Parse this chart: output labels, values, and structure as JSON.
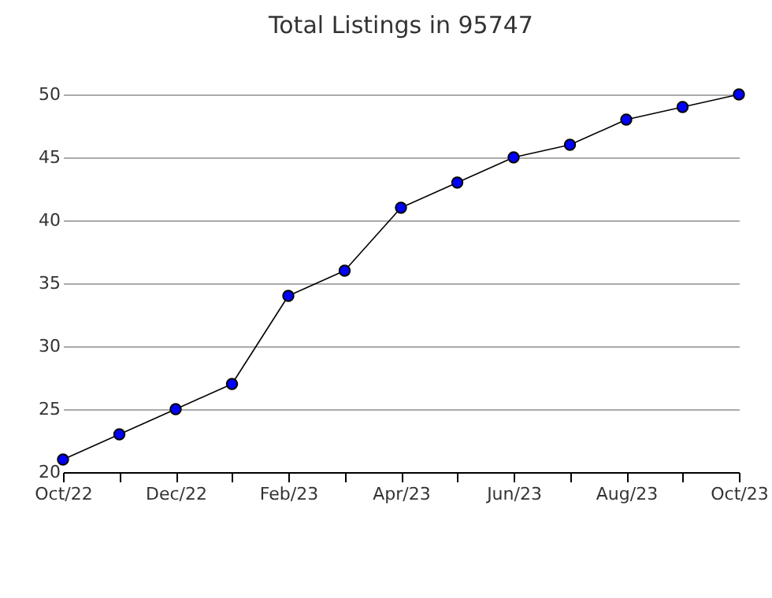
{
  "chart_data": {
    "type": "line",
    "title": "Total Listings in 95747",
    "categories": [
      "Oct/22",
      null,
      "Dec/22",
      null,
      "Feb/23",
      null,
      "Apr/23",
      null,
      "Jun/23",
      null,
      "Aug/23",
      null,
      "Oct/23"
    ],
    "series": [
      {
        "color": "#0000ff",
        "values": [
          21,
          23,
          25,
          27,
          34,
          36,
          41,
          43,
          45,
          46,
          48,
          49,
          50
        ]
      }
    ],
    "ylim": [
      20,
      50
    ],
    "yticks": [
      20,
      25,
      30,
      35,
      40,
      45,
      50
    ],
    "grid": "y",
    "marker": "circle",
    "line_style": "solid"
  }
}
